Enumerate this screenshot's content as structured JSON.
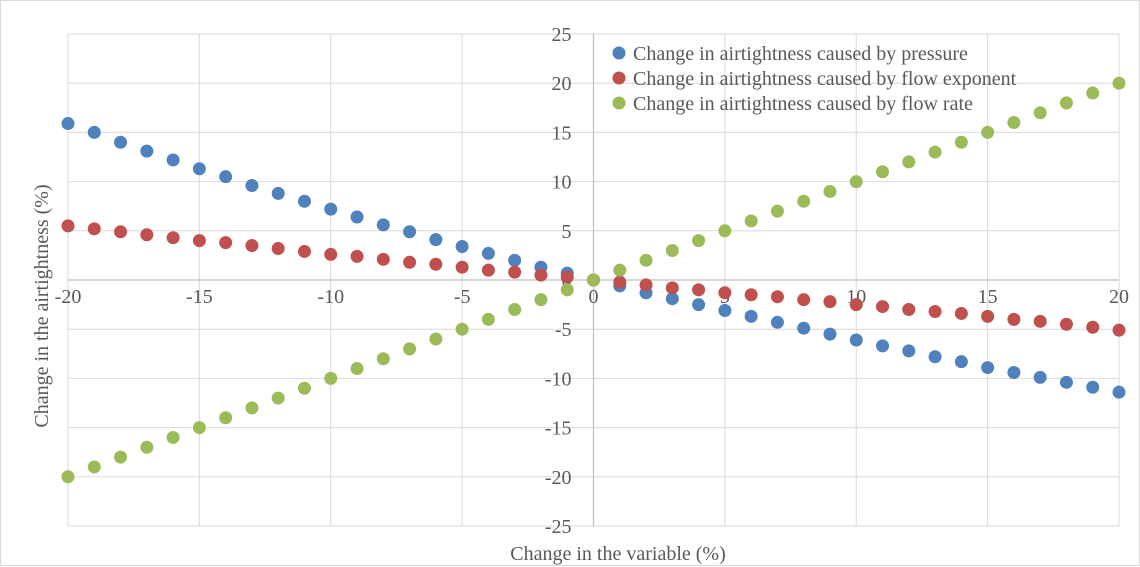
{
  "chart_data": {
    "type": "scatter",
    "xlabel": "Change in the variable (%)",
    "ylabel": "Change in the airtightness (%)",
    "xlim": [
      -20,
      20
    ],
    "ylim": [
      -25,
      25
    ],
    "x_ticks": [
      -20,
      -15,
      -10,
      -5,
      0,
      5,
      10,
      15,
      20
    ],
    "y_ticks": [
      -25,
      -20,
      -15,
      -10,
      -5,
      0,
      5,
      10,
      15,
      20,
      25
    ],
    "x_tick_labels": [
      "-20",
      "-15",
      "-10",
      "-5",
      "0",
      "5",
      "10",
      "15",
      "20"
    ],
    "y_tick_labels": [
      "-25",
      "-20",
      "-15",
      "-10",
      "-5",
      "0",
      "5",
      "10",
      "15",
      "20",
      "25"
    ],
    "grid": true,
    "legend_position": "top-right",
    "x": [
      -20,
      -19,
      -18,
      -17,
      -16,
      -15,
      -14,
      -13,
      -12,
      -11,
      -10,
      -9,
      -8,
      -7,
      -6,
      -5,
      -4,
      -3,
      -2,
      -1,
      0,
      1,
      2,
      3,
      4,
      5,
      6,
      7,
      8,
      9,
      10,
      11,
      12,
      13,
      14,
      15,
      16,
      17,
      18,
      19,
      20
    ],
    "series": [
      {
        "name": "Change in airtightness caused by pressure",
        "color": "#4f81bd",
        "values": [
          15.9,
          15.0,
          14.0,
          13.1,
          12.2,
          11.3,
          10.5,
          9.6,
          8.8,
          8.0,
          7.2,
          6.4,
          5.6,
          4.9,
          4.1,
          3.4,
          2.7,
          2.0,
          1.3,
          0.7,
          0.0,
          -0.6,
          -1.3,
          -1.9,
          -2.5,
          -3.1,
          -3.7,
          -4.3,
          -4.9,
          -5.5,
          -6.1,
          -6.7,
          -7.2,
          -7.8,
          -8.3,
          -8.9,
          -9.4,
          -9.9,
          -10.4,
          -10.9,
          -11.4
        ]
      },
      {
        "name": "Change in airtightness caused by flow exponent",
        "color": "#c0504d",
        "values": [
          5.5,
          5.2,
          4.9,
          4.6,
          4.3,
          4.0,
          3.8,
          3.5,
          3.2,
          2.9,
          2.6,
          2.4,
          2.1,
          1.8,
          1.6,
          1.3,
          1.0,
          0.8,
          0.5,
          0.3,
          0.0,
          -0.2,
          -0.5,
          -0.8,
          -1.0,
          -1.3,
          -1.5,
          -1.7,
          -2.0,
          -2.2,
          -2.5,
          -2.7,
          -3.0,
          -3.2,
          -3.4,
          -3.7,
          -4.0,
          -4.2,
          -4.5,
          -4.8,
          -5.1
        ]
      },
      {
        "name": "Change in airtightness caused by flow rate",
        "color": "#9bbb59",
        "values": [
          -20,
          -19,
          -18,
          -17,
          -16,
          -15,
          -14,
          -13,
          -12,
          -11,
          -10,
          -9,
          -8,
          -7,
          -6,
          -5,
          -4,
          -3,
          -2,
          -1,
          0,
          1,
          2,
          3,
          4,
          5,
          6,
          7,
          8,
          9,
          10,
          11,
          12,
          13,
          14,
          15,
          16,
          17,
          18,
          19,
          20
        ]
      }
    ]
  }
}
